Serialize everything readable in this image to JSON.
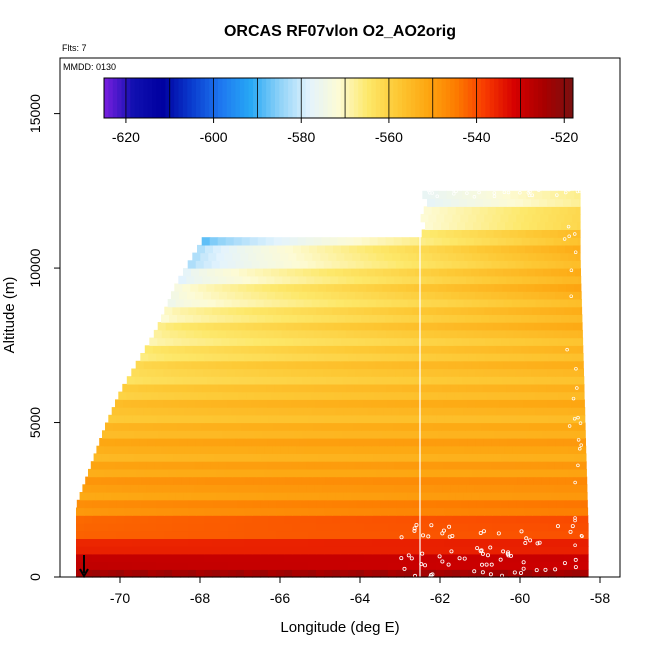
{
  "chart_data": {
    "type": "heatmap",
    "title": "ORCAS RF07vlon O2_AO2orig",
    "subtitle_flights": "Flts: 7",
    "subtitle_date": "MMDD: 0130",
    "xlabel": "Longitude (deg E)",
    "ylabel": "Altitude (m)",
    "xlim": [
      -71.5,
      -57.5
    ],
    "ylim": [
      0,
      16800
    ],
    "x_ticks": [
      -70,
      -68,
      -66,
      -64,
      -62,
      -60,
      -58
    ],
    "x_tick_labels": [
      "-70",
      "-68",
      "-66",
      "-64",
      "-62",
      "-60",
      "-58"
    ],
    "y_ticks": [
      0,
      5000,
      10000,
      15000
    ],
    "y_tick_labels": [
      "0",
      "5000",
      "10000",
      "15000"
    ],
    "colorbar": {
      "range": [
        -625,
        -518
      ],
      "ticks": [
        -620,
        -600,
        -580,
        -560,
        -540,
        -520
      ],
      "tick_labels": [
        "-620",
        "-600",
        "-580",
        "-560",
        "-540",
        "-520"
      ],
      "colors": [
        "#7a1fe0",
        "#1010b0",
        "#0000a0",
        "#0a3ccf",
        "#1e78f0",
        "#27a8f5",
        "#8fd2f8",
        "#e3f3fd",
        "#fdfbd5",
        "#fde86a",
        "#fdc935",
        "#fda812",
        "#fd7c00",
        "#f83a00",
        "#d60000",
        "#a80000",
        "#7a1010"
      ]
    },
    "vertical_line_lon": -62.5,
    "profile_altitudes": [
      0,
      1000,
      2000,
      3000,
      4000,
      5000,
      6000,
      7000,
      8000,
      9000,
      10000,
      11000,
      12000,
      12800
    ],
    "profile_west_values": [
      -525,
      -537,
      -548,
      -551,
      -553,
      -556,
      -560,
      -565,
      -569,
      -574,
      -580,
      -589,
      -597,
      -600
    ],
    "profile_east_values": [
      -528,
      -536,
      -544,
      -549,
      -551,
      -553,
      -554,
      -555,
      -554,
      -553,
      -553,
      -556,
      -566,
      -572
    ],
    "domain_boundary_lon": [
      -71.1,
      -71.1,
      -70.4,
      -70.0,
      -69.1,
      -68.6,
      -67.9,
      -67.3,
      -62.4,
      -61.5,
      -58.5,
      -58.5,
      -58.3,
      -58.3
    ],
    "domain_boundary_alt": [
      0,
      2300,
      4800,
      6000,
      8000,
      9500,
      11000,
      12800,
      12800,
      12500,
      12500,
      10300,
      1600,
      0
    ],
    "marker_arrow_lon": -70.9
  }
}
